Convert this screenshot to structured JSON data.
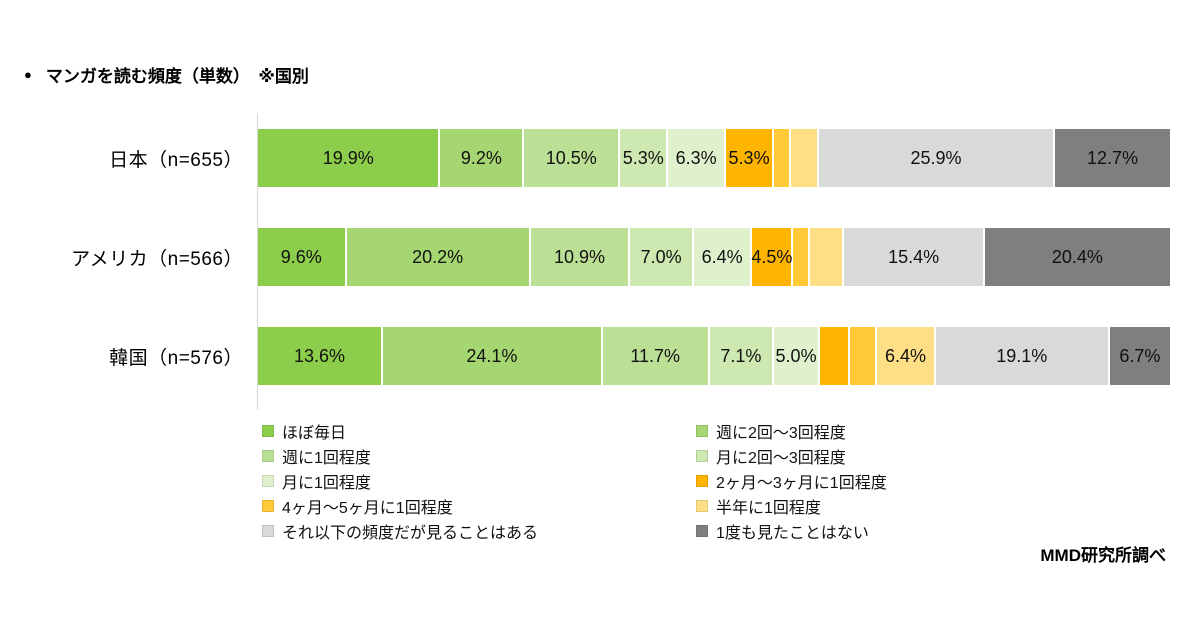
{
  "title": {
    "bullet": "●",
    "text": "マンガを読む頻度（単数）　※国別"
  },
  "source": "MMD研究所調べ",
  "chart_data": {
    "type": "bar",
    "subtype": "stacked-horizontal",
    "unit": "%",
    "xlim": [
      0,
      100
    ],
    "grid": false,
    "value_label_format": "0.0%",
    "label_threshold": 4.5,
    "legend_position": "bottom-two-columns",
    "categories": [
      "日本（n=655）",
      "アメリカ（n=566）",
      "韓国（n=576）"
    ],
    "series": [
      {
        "name": "ほぼ毎日",
        "color": "#8CCE4B",
        "values": [
          19.9,
          9.6,
          13.6
        ]
      },
      {
        "name": "週に2回～3回程度",
        "color": "#A6D672",
        "values": [
          9.2,
          20.2,
          24.1
        ]
      },
      {
        "name": "週に1回程度",
        "color": "#BCDF96",
        "values": [
          10.5,
          10.9,
          11.7
        ]
      },
      {
        "name": "月に2回～3回程度",
        "color": "#CDE8B0",
        "values": [
          5.3,
          7.0,
          7.1
        ]
      },
      {
        "name": "月に1回程度",
        "color": "#DFF0CC",
        "values": [
          6.3,
          6.4,
          5.0
        ]
      },
      {
        "name": "2ヶ月～3ヶ月に1回程度",
        "color": "#FFB400",
        "values": [
          5.3,
          4.5,
          3.3
        ]
      },
      {
        "name": "4ヶ月～5ヶ月に1回程度",
        "color": "#FFC937",
        "values": [
          1.8,
          1.8,
          3.0
        ]
      },
      {
        "name": "半年に1回程度",
        "color": "#FFDF85",
        "values": [
          3.1,
          3.8,
          6.4
        ]
      },
      {
        "name": "それ以下の頻度だが見ることはある",
        "color": "#D9D9D9",
        "values": [
          25.9,
          15.4,
          19.1
        ]
      },
      {
        "name": "1度も見たことはない",
        "color": "#7F7F7F",
        "values": [
          12.7,
          20.4,
          6.7
        ]
      }
    ]
  }
}
